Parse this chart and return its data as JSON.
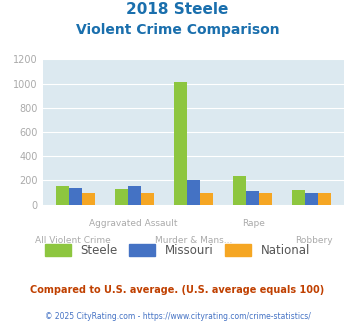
{
  "title_line1": "2018 Steele",
  "title_line2": "Violent Crime Comparison",
  "categories": [
    "All Violent Crime",
    "Aggravated Assault",
    "Murder & Mans...",
    "Rape",
    "Robbery"
  ],
  "steele": [
    150,
    125,
    1010,
    240,
    120
  ],
  "missouri": [
    135,
    150,
    200,
    115,
    100
  ],
  "national": [
    100,
    100,
    100,
    100,
    100
  ],
  "color_steele": "#8dc63f",
  "color_missouri": "#4472c4",
  "color_national": "#f5a623",
  "ylim": [
    0,
    1200
  ],
  "yticks": [
    0,
    200,
    400,
    600,
    800,
    1000,
    1200
  ],
  "bg_color": "#dce9f0",
  "title1_color": "#1a6fad",
  "title2_color": "#1a6fad",
  "footnote1": "Compared to U.S. average. (U.S. average equals 100)",
  "footnote2": "© 2025 CityRating.com - https://www.cityrating.com/crime-statistics/",
  "footnote1_color": "#c04000",
  "footnote2_color": "#4472c4",
  "label_color": "#aaaaaa",
  "ytick_color": "#aaaaaa"
}
